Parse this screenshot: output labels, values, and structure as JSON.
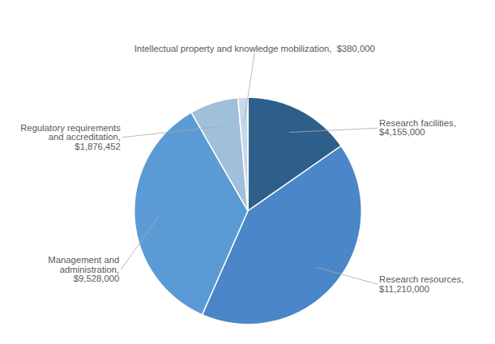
{
  "chart_data": {
    "type": "pie",
    "categories": [
      "Research facilities,\n$4,155,000",
      "Research resources,\n$11,210,000",
      "Management and\nadministration,\n$9,528,000",
      "Regulatory requirements\nand accreditation,\n$1,876,452",
      "Intellectual property and knowledge mobilization,  $380,000"
    ],
    "values": [
      4155000,
      11210000,
      9528000,
      1876452,
      380000
    ],
    "colors": [
      "#2E5F8A",
      "#4A86C8",
      "#5B9BD5",
      "#A0BFD8",
      "#C5D9EA"
    ]
  }
}
